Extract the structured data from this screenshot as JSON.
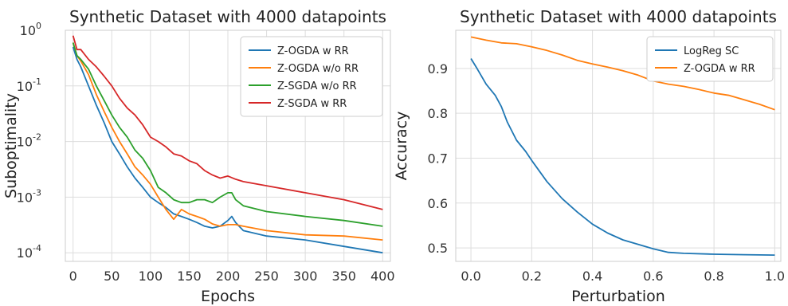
{
  "chart_data": [
    {
      "type": "line",
      "title": "Synthetic Dataset with 4000 datapoints",
      "xlabel": "Epochs",
      "ylabel": "Suboptimality",
      "yscale": "log",
      "xlim": [
        -10,
        410
      ],
      "ylim": [
        7e-05,
        1.0
      ],
      "xticks": [
        0,
        50,
        100,
        150,
        200,
        250,
        300,
        350,
        400
      ],
      "yticks": [
        1,
        0.1,
        0.01,
        0.001,
        0.0001
      ],
      "ytick_labels": [
        [
          "10",
          "0"
        ],
        [
          "10",
          "-1"
        ],
        [
          "10",
          "-2"
        ],
        [
          "10",
          "-3"
        ],
        [
          "10",
          "-4"
        ]
      ],
      "grid": true,
      "legend_position": "top-right",
      "series": [
        {
          "name": "Z-OGDA w RR",
          "color": "#1f77b4",
          "x": [
            0,
            5,
            10,
            20,
            30,
            40,
            50,
            60,
            70,
            80,
            90,
            100,
            110,
            120,
            130,
            140,
            150,
            160,
            170,
            180,
            190,
            200,
            205,
            210,
            220,
            250,
            300,
            350,
            400
          ],
          "y": [
            0.5,
            0.3,
            0.22,
            0.1,
            0.045,
            0.022,
            0.01,
            0.006,
            0.0035,
            0.0022,
            0.0015,
            0.001,
            0.0008,
            0.00065,
            0.0005,
            0.00045,
            0.0004,
            0.00035,
            0.0003,
            0.00028,
            0.0003,
            0.00038,
            0.00045,
            0.00035,
            0.00025,
            0.0002,
            0.00017,
            0.00013,
            0.0001
          ]
        },
        {
          "name": "Z-OGDA w/o RR",
          "color": "#ff7f0e",
          "x": [
            0,
            5,
            10,
            20,
            30,
            40,
            50,
            60,
            70,
            80,
            90,
            100,
            110,
            120,
            130,
            140,
            150,
            160,
            170,
            180,
            190,
            200,
            210,
            220,
            250,
            300,
            350,
            400
          ],
          "y": [
            0.6,
            0.35,
            0.28,
            0.16,
            0.07,
            0.035,
            0.018,
            0.01,
            0.006,
            0.0035,
            0.0025,
            0.0017,
            0.001,
            0.0006,
            0.0004,
            0.0006,
            0.0005,
            0.00045,
            0.0004,
            0.00033,
            0.0003,
            0.00032,
            0.00032,
            0.0003,
            0.00025,
            0.00021,
            0.0002,
            0.00017
          ]
        },
        {
          "name": "Z-SGDA w/o RR",
          "color": "#2ca02c",
          "x": [
            0,
            5,
            10,
            20,
            30,
            40,
            50,
            60,
            70,
            80,
            90,
            100,
            110,
            120,
            130,
            140,
            150,
            160,
            170,
            180,
            190,
            200,
            205,
            210,
            220,
            250,
            300,
            350,
            400
          ],
          "y": [
            0.6,
            0.35,
            0.3,
            0.2,
            0.1,
            0.055,
            0.03,
            0.018,
            0.012,
            0.007,
            0.005,
            0.003,
            0.0015,
            0.0012,
            0.0009,
            0.0008,
            0.0008,
            0.0009,
            0.0009,
            0.0008,
            0.001,
            0.0012,
            0.0012,
            0.0009,
            0.0007,
            0.00055,
            0.00045,
            0.00038,
            0.0003
          ]
        },
        {
          "name": "Z-SGDA w RR",
          "color": "#d62728",
          "x": [
            0,
            5,
            10,
            20,
            30,
            40,
            50,
            60,
            70,
            80,
            90,
            100,
            110,
            120,
            130,
            140,
            150,
            160,
            170,
            180,
            190,
            200,
            210,
            220,
            250,
            300,
            350,
            400
          ],
          "y": [
            0.8,
            0.45,
            0.45,
            0.3,
            0.22,
            0.15,
            0.1,
            0.06,
            0.04,
            0.03,
            0.02,
            0.012,
            0.01,
            0.008,
            0.006,
            0.0055,
            0.0045,
            0.004,
            0.003,
            0.0025,
            0.0022,
            0.0024,
            0.0021,
            0.0019,
            0.0016,
            0.0012,
            0.0009,
            0.0006
          ]
        }
      ]
    },
    {
      "type": "line",
      "title": "Synthetic Dataset with 4000 datapoints",
      "xlabel": "Perturbation",
      "ylabel": "Accuracy",
      "xlim": [
        -0.05,
        1.02
      ],
      "ylim": [
        0.47,
        0.985
      ],
      "xticks": [
        0.0,
        0.2,
        0.4,
        0.6,
        0.8,
        1.0
      ],
      "xtick_labels": [
        "0.0",
        "0.2",
        "0.4",
        "0.6",
        "0.8",
        "1.0"
      ],
      "yticks": [
        0.5,
        0.6,
        0.7,
        0.8,
        0.9
      ],
      "ytick_labels": [
        "0.5",
        "0.6",
        "0.7",
        "0.8",
        "0.9"
      ],
      "grid": true,
      "legend_position": "top-right",
      "series": [
        {
          "name": "LogReg SC",
          "color": "#1f77b4",
          "x": [
            0.0,
            0.02,
            0.05,
            0.08,
            0.1,
            0.12,
            0.15,
            0.18,
            0.2,
            0.25,
            0.3,
            0.35,
            0.4,
            0.45,
            0.5,
            0.55,
            0.6,
            0.65,
            0.7,
            0.8,
            0.9,
            1.0
          ],
          "y": [
            0.922,
            0.9,
            0.865,
            0.84,
            0.815,
            0.78,
            0.74,
            0.715,
            0.695,
            0.648,
            0.61,
            0.58,
            0.553,
            0.533,
            0.518,
            0.508,
            0.498,
            0.49,
            0.488,
            0.486,
            0.485,
            0.484
          ]
        },
        {
          "name": "Z-OGDA w RR",
          "color": "#ff7f0e",
          "x": [
            0.0,
            0.05,
            0.1,
            0.15,
            0.2,
            0.25,
            0.3,
            0.35,
            0.4,
            0.45,
            0.5,
            0.55,
            0.6,
            0.65,
            0.7,
            0.75,
            0.8,
            0.85,
            0.9,
            0.95,
            1.0
          ],
          "y": [
            0.97,
            0.963,
            0.957,
            0.955,
            0.948,
            0.94,
            0.93,
            0.918,
            0.91,
            0.903,
            0.895,
            0.885,
            0.872,
            0.865,
            0.86,
            0.853,
            0.845,
            0.84,
            0.83,
            0.82,
            0.808
          ]
        }
      ]
    }
  ]
}
